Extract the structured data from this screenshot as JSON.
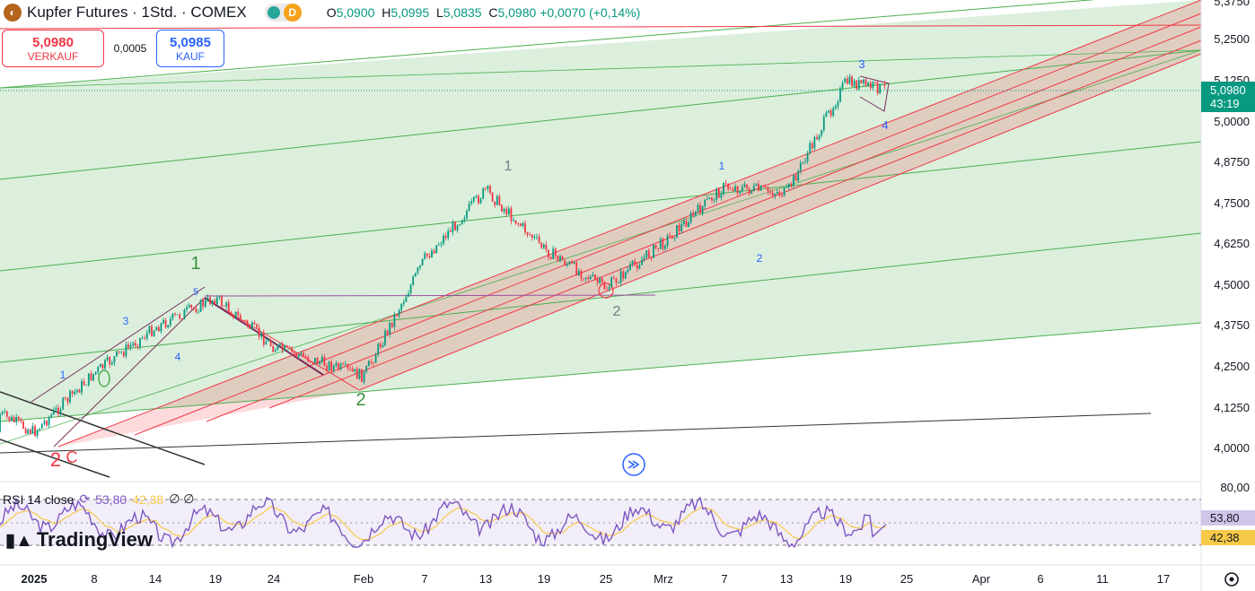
{
  "header": {
    "symbol_title": "Kupfer Futures · 1Std. · COMEX",
    "status_badge": "D",
    "ohlc": {
      "o_label": "O",
      "o_value": "5,0900",
      "h_label": "H",
      "h_value": "5,0995",
      "l_label": "L",
      "l_value": "5,0835",
      "c_label": "C",
      "c_value": "5,0980",
      "change": "+0,0070 (+0,14%)"
    }
  },
  "trade": {
    "sell_price": "5,0980",
    "sell_label": "VERKAUF",
    "spread": "0,0005",
    "buy_price": "5,0985",
    "buy_label": "KAUF"
  },
  "price_axis": {
    "top_partial": "5,3750",
    "ticks": [
      "5,2500",
      "5,1250",
      "5,0000",
      "4,8750",
      "4,7500",
      "4,6250",
      "4,5000",
      "4,3750",
      "4,2500",
      "4,1250",
      "4,0000"
    ],
    "current_price": "5,0980",
    "countdown": "43:19"
  },
  "rsi": {
    "title": "RSI 14 close",
    "value_rsi": "53,80",
    "value_ma": "42,38",
    "symbols": "∅ ∅",
    "axis_top": "80,00",
    "tag_rsi": "53,80",
    "tag_ma": "42,38"
  },
  "time_axis": {
    "labels": [
      "2025",
      "8",
      "14",
      "19",
      "24",
      "Feb",
      "7",
      "13",
      "19",
      "25",
      "Mrz",
      "7",
      "13",
      "19",
      "25",
      "Apr",
      "6",
      "11",
      "17"
    ]
  },
  "wave_labels": [
    "1",
    "2",
    "3",
    "4",
    "5",
    "1",
    "2",
    "C",
    "1",
    "2",
    "1",
    "2",
    "3",
    "4"
  ],
  "logo": "TradingView",
  "colors": {
    "up": "#089981",
    "down": "#f23645",
    "rsi": "#7e57c2",
    "rsi_ma": "#f7c948",
    "green_channel": "#4caf50",
    "red_channel": "#f23645"
  },
  "chart_data": {
    "type": "candlestick",
    "title": "Kupfer Futures · 1Std. · COMEX",
    "y_range": [
      3.95,
      5.4
    ],
    "x": [
      "2025",
      "8",
      "14",
      "19",
      "24",
      "Feb",
      "7",
      "13",
      "19",
      "25",
      "Mrz",
      "7",
      "13",
      "19",
      "25",
      "Apr",
      "6",
      "11",
      "17"
    ],
    "close_path": [
      [
        "2025",
        4.05
      ],
      [
        "8",
        4.23
      ],
      [
        "14",
        4.37
      ],
      [
        "19",
        4.46
      ],
      [
        "24",
        4.31
      ],
      [
        "Feb",
        4.22
      ],
      [
        "7",
        4.58
      ],
      [
        "13",
        4.79
      ],
      [
        "19",
        4.61
      ],
      [
        "25",
        4.49
      ],
      [
        "Mrz",
        4.63
      ],
      [
        "7",
        4.8
      ],
      [
        "13",
        4.78
      ],
      [
        "19",
        5.12
      ],
      [
        "25",
        5.098
      ]
    ],
    "last_close": 5.098,
    "rsi": {
      "last": 53.8,
      "ma_last": 42.38,
      "upper_band": 80,
      "levels": [
        70,
        30
      ]
    }
  }
}
